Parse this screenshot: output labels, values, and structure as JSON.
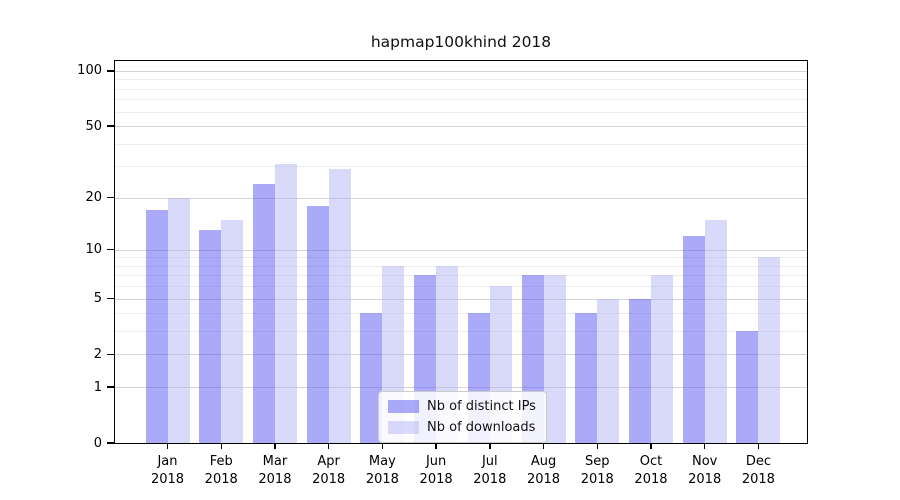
{
  "title": "hapmap100khind 2018",
  "chart_data": {
    "type": "bar",
    "title": "hapmap100khind 2018",
    "x_months": [
      "Jan",
      "Feb",
      "Mar",
      "Apr",
      "May",
      "Jun",
      "Jul",
      "Aug",
      "Sep",
      "Oct",
      "Nov",
      "Dec"
    ],
    "x_year": "2018",
    "categories": [
      "Jan 2018",
      "Feb 2018",
      "Mar 2018",
      "Apr 2018",
      "May 2018",
      "Jun 2018",
      "Jul 2018",
      "Aug 2018",
      "Sep 2018",
      "Oct 2018",
      "Nov 2018",
      "Dec 2018"
    ],
    "series": [
      {
        "name": "Nb of distinct IPs",
        "color": "rgba(86,86,244,0.5)",
        "values": [
          17,
          13,
          24,
          18,
          4,
          7,
          4,
          7,
          4,
          5,
          12,
          3
        ]
      },
      {
        "name": "Nb of downloads",
        "color": "rgba(179,179,244,0.5)",
        "values": [
          20,
          15,
          31,
          29,
          8,
          8,
          6,
          7,
          5,
          7,
          15,
          9
        ]
      }
    ],
    "yscale": "log10(1+x)",
    "ylim": [
      0,
      115
    ],
    "y_major_ticks": [
      0,
      1,
      2,
      5,
      10,
      20,
      50,
      100
    ],
    "y_minor_gridlines": [
      3,
      4,
      6,
      7,
      8,
      9,
      30,
      40,
      60,
      70,
      80,
      90
    ],
    "grid": true,
    "legend_position": "lower center"
  },
  "colors": {
    "ips_bar": "rgba(86,86,244,0.5)",
    "downloads_bar": "rgba(179,179,244,0.5)",
    "major_grid": "#d4d4d4",
    "minor_grid": "#ececec",
    "axis": "#000000",
    "legend_border": "#cccccc",
    "background": "#ffffff"
  }
}
